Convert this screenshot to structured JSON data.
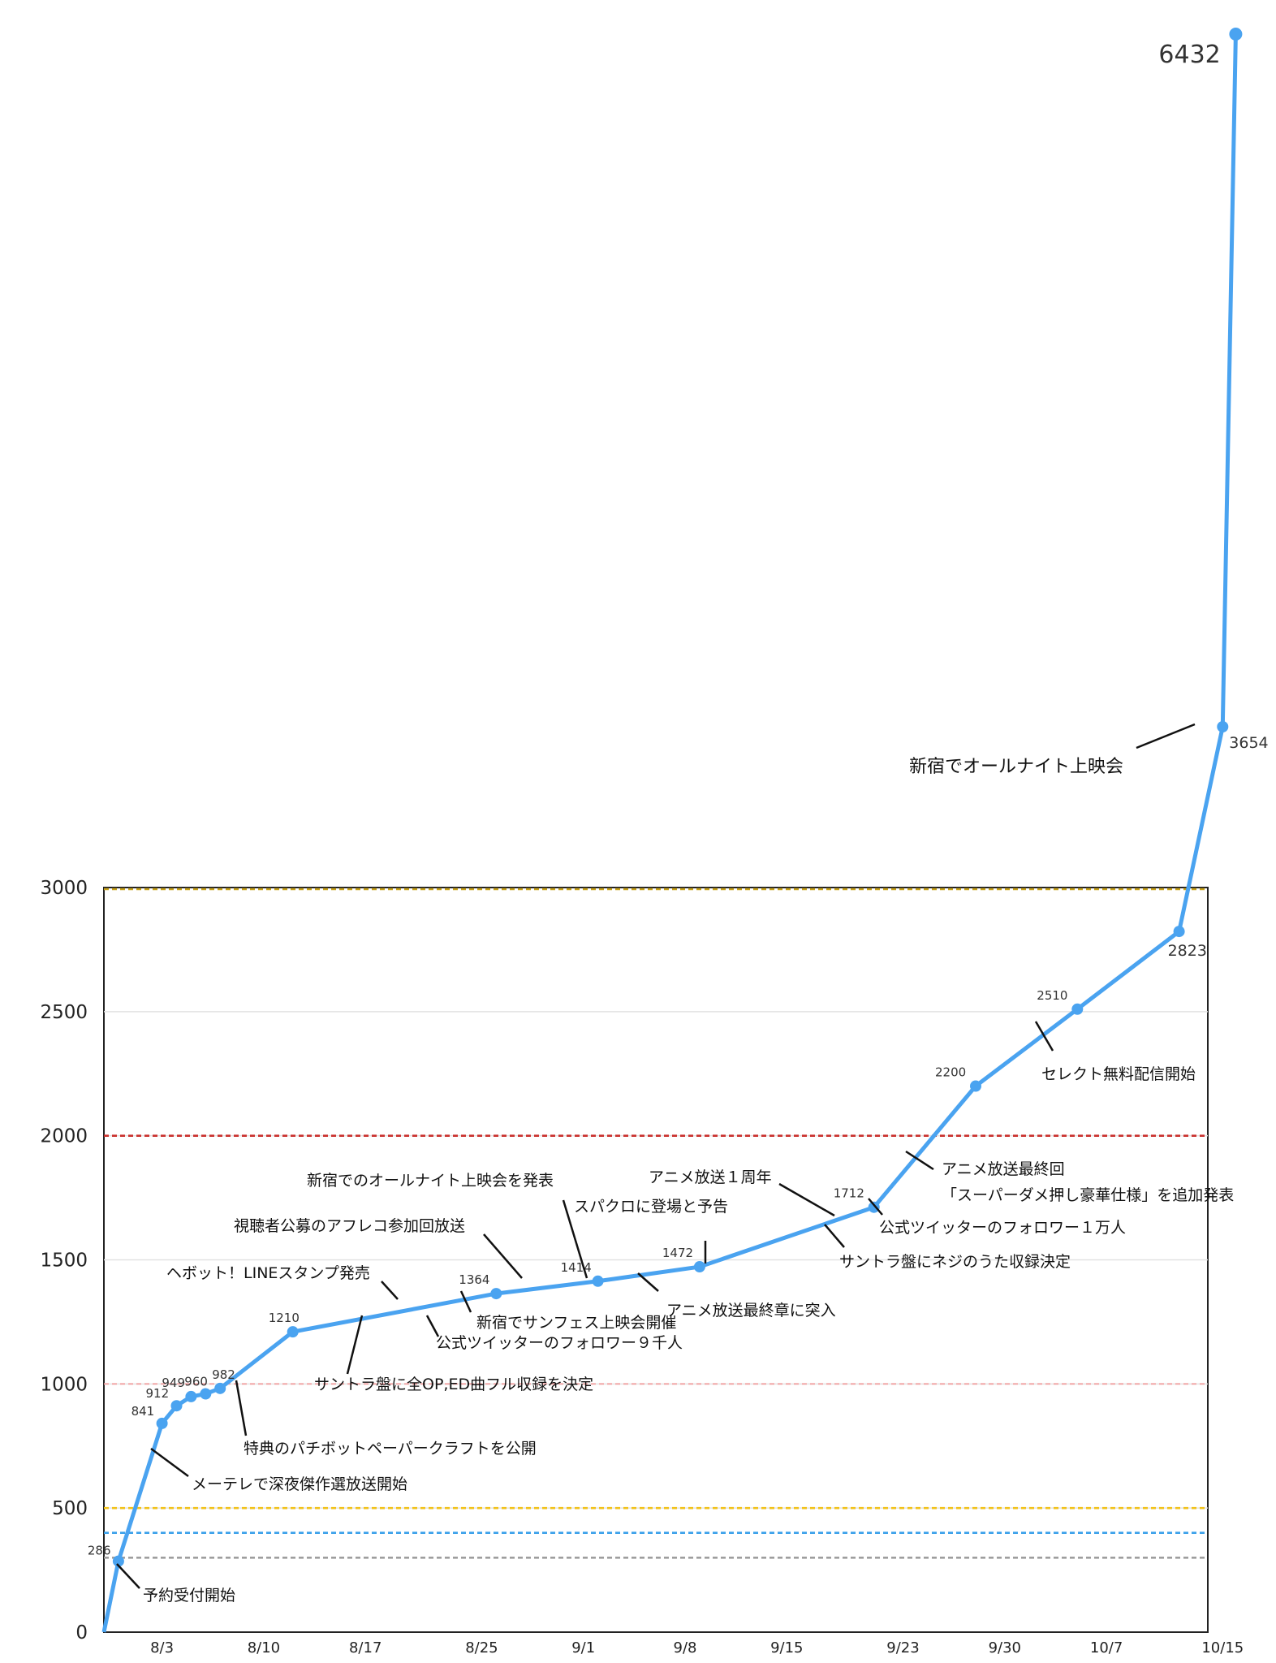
{
  "chart_data": {
    "type": "line",
    "title": "",
    "xlabel": "",
    "ylabel": "",
    "ylim": [
      0,
      3000
    ],
    "y_ticks": [
      "0",
      "500",
      "1000",
      "1500",
      "2000",
      "2500",
      "3000"
    ],
    "x_ticks": [
      "8/3",
      "8/10",
      "8/17",
      "8/25",
      "9/1",
      "9/8",
      "9/15",
      "9/23",
      "9/30",
      "10/7",
      "10/15"
    ],
    "x_tick_days": [
      4,
      11,
      18,
      26,
      33,
      40,
      47,
      55,
      62,
      69,
      77
    ],
    "grid": true,
    "line_color": "#4aa3f0",
    "reference_lines": [
      {
        "y": 300,
        "color": "#9e9e9e"
      },
      {
        "y": 400,
        "color": "#3aa0ea"
      },
      {
        "y": 500,
        "color": "#f2c21b"
      },
      {
        "y": 1000,
        "color": "#f0a0a0"
      },
      {
        "y": 2000,
        "color": "#c9302c"
      },
      {
        "y": 3000,
        "color": "#c8a21a"
      }
    ],
    "series": [
      {
        "name": "",
        "x": [
          0,
          1,
          4,
          5,
          6,
          7,
          8,
          13,
          27,
          34,
          41,
          53,
          60,
          67,
          74,
          77,
          77.9
        ],
        "y": [
          0,
          286,
          841,
          912,
          949,
          960,
          982,
          1210,
          1364,
          1414,
          1472,
          1712,
          2200,
          2510,
          2823,
          3654,
          6432
        ],
        "point_labels": [
          "",
          "286",
          "841",
          "912",
          "949",
          "960",
          "982",
          "1210",
          "1364",
          "1414",
          "1472",
          "1712",
          "2200",
          "2510",
          "2823",
          "3654",
          "6432"
        ]
      }
    ],
    "annotations": [
      {
        "text": "予約受付開始"
      },
      {
        "text": "メーテレで深夜傑作選放送開始"
      },
      {
        "text": "特典のパチボットペーパークラフトを公開"
      },
      {
        "text": "ヘボット！LINEスタンプ発売"
      },
      {
        "text": "サントラ盤に全OP,ED曲フル収録を決定"
      },
      {
        "text": "公式ツイッターのフォロワー９千人"
      },
      {
        "text": "新宿でサンフェス上映会開催"
      },
      {
        "text": "視聴者公募のアフレコ参加回放送"
      },
      {
        "text": "新宿でのオールナイト上映会を発表"
      },
      {
        "text": "スパクロに登場と予告"
      },
      {
        "text": "アニメ放送最終章に突入"
      },
      {
        "text": "アニメ放送１周年"
      },
      {
        "text": "サントラ盤にネジのうた収録決定"
      },
      {
        "text": "公式ツイッターのフォロワー１万人"
      },
      {
        "text": "アニメ放送最終回"
      },
      {
        "text": "「スーパーダメ押し豪華仕様」を追加発表"
      },
      {
        "text": "セレクト無料配信開始"
      },
      {
        "text": "新宿でオールナイト上映会"
      }
    ]
  }
}
